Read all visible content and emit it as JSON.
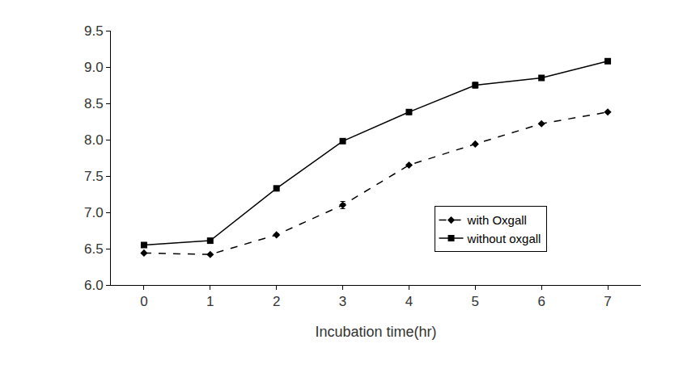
{
  "chart_data": {
    "type": "line",
    "x_label": "Incubation time(hr)",
    "x": [
      0,
      1,
      2,
      3,
      4,
      5,
      6,
      7
    ],
    "series": [
      {
        "name": "with Oxgall",
        "color": "#000000",
        "marker": "diamond",
        "line_style": "dash",
        "values": [
          6.44,
          6.42,
          6.69,
          7.1,
          7.65,
          7.94,
          8.22,
          8.38
        ],
        "errors": [
          0.01,
          0.01,
          0.01,
          0.05,
          0.01,
          0.01,
          0.01,
          0.01
        ]
      },
      {
        "name": "without oxgall",
        "color": "#000000",
        "marker": "square",
        "line_style": "solid",
        "values": [
          6.55,
          6.61,
          7.33,
          7.98,
          8.38,
          8.75,
          8.85,
          9.08
        ],
        "errors": [
          0.02,
          0.02,
          0.03,
          0.03,
          0.02,
          0.04,
          0.03,
          0.02
        ]
      }
    ],
    "xlim": [
      -0.5,
      7.5
    ],
    "xticks": [
      0,
      1,
      2,
      3,
      4,
      5,
      6,
      7
    ],
    "ylim": [
      6.0,
      9.5
    ],
    "yticks": [
      {
        "value": 6.0,
        "label": "6.0"
      },
      6.5,
      {
        "value": 7.0,
        "label": "7.0"
      },
      7.5,
      {
        "value": 8.0,
        "label": "8.0"
      },
      8.5,
      {
        "value": 9.0,
        "label": "9.0"
      },
      9.5
    ],
    "grid": false,
    "legend": "lower right"
  }
}
